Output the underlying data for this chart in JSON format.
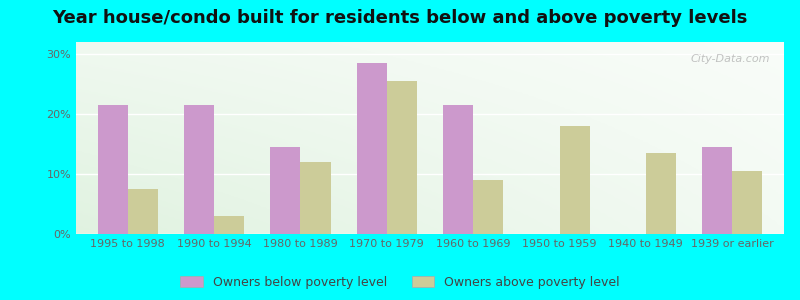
{
  "title": "Year house/condo built for residents below and above poverty levels",
  "categories": [
    "1995 to 1998",
    "1990 to 1994",
    "1980 to 1989",
    "1970 to 1979",
    "1960 to 1969",
    "1950 to 1959",
    "1940 to 1949",
    "1939 or earlier"
  ],
  "below_poverty": [
    21.5,
    21.5,
    14.5,
    28.5,
    21.5,
    0,
    0,
    14.5
  ],
  "above_poverty": [
    7.5,
    3.0,
    12.0,
    25.5,
    9.0,
    18.0,
    13.5,
    10.5
  ],
  "below_color": "#cc99cc",
  "above_color": "#cccc99",
  "ylim": [
    0,
    32
  ],
  "yticks": [
    0,
    10,
    20,
    30
  ],
  "ytick_labels": [
    "0%",
    "10%",
    "20%",
    "30%"
  ],
  "bar_width": 0.35,
  "outer_background": "#00ffff",
  "legend_below": "Owners below poverty level",
  "legend_above": "Owners above poverty level",
  "grid_color": "#ccddcc",
  "title_fontsize": 13,
  "label_fontsize": 8,
  "legend_fontsize": 9,
  "watermark": "City-Data.com"
}
